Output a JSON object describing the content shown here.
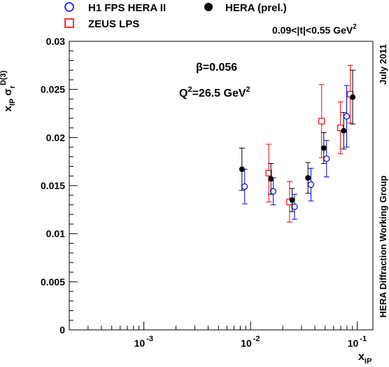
{
  "chart_data": {
    "type": "scatter",
    "xscale": "log",
    "xlim": [
      0.0002,
      0.14
    ],
    "ylim": [
      0,
      0.03
    ],
    "grid": false,
    "legend_position": "top",
    "xlabel": {
      "main": "x",
      "sub": "IP"
    },
    "ylabel": {
      "x": "x",
      "x_sub": "IP",
      "sigma": "σ",
      "sigma_sub": "r",
      "sup": "D(3)"
    },
    "x_ticks": [
      {
        "value": 0.001,
        "base": "10",
        "exp": "-3"
      },
      {
        "value": 0.01,
        "base": "10",
        "exp": "-2"
      },
      {
        "value": 0.1,
        "base": "10",
        "exp": "-1"
      }
    ],
    "y_ticks": [
      {
        "value": 0,
        "label": "0"
      },
      {
        "value": 0.005,
        "label": "0.005"
      },
      {
        "value": 0.01,
        "label": "0.01"
      },
      {
        "value": 0.015,
        "label": "0.015"
      },
      {
        "value": 0.02,
        "label": "0.02"
      },
      {
        "value": 0.025,
        "label": "0.025"
      },
      {
        "value": 0.03,
        "label": "0.03"
      }
    ],
    "annotations": {
      "beta": "β=0.056",
      "q2_main": "Q",
      "q2_sup": "2",
      "q2_value": "=26.5 GeV",
      "q2_unit_sup": "2",
      "t_range": "0.09<|t|<0.55 GeV",
      "t_range_sup": "2",
      "date": "July 2011",
      "group": "HERA Diffraction Working Group"
    },
    "series": [
      {
        "name": "H1 FPS HERA II",
        "marker": "open-circle",
        "color": "#0000ff",
        "points": [
          {
            "x": 0.0088,
            "y": 0.0149,
            "err": 0.0018
          },
          {
            "x": 0.0163,
            "y": 0.0144,
            "err": 0.0014
          },
          {
            "x": 0.0258,
            "y": 0.0128,
            "err": 0.0013
          },
          {
            "x": 0.0368,
            "y": 0.0151,
            "err": 0.0017
          },
          {
            "x": 0.0515,
            "y": 0.0178,
            "err": 0.0019
          },
          {
            "x": 0.0795,
            "y": 0.0222,
            "err": 0.0032
          }
        ]
      },
      {
        "name": "ZEUS LPS",
        "marker": "open-square",
        "color": "#ff0000",
        "points": [
          {
            "x": 0.0148,
            "y": 0.0163,
            "err": 0.003
          },
          {
            "x": 0.0232,
            "y": 0.0133,
            "err": 0.0021
          },
          {
            "x": 0.0463,
            "y": 0.0217,
            "err": 0.0038
          },
          {
            "x": 0.0695,
            "y": 0.021,
            "err": 0.0027
          },
          {
            "x": 0.086,
            "y": 0.0245,
            "err": 0.003
          }
        ]
      },
      {
        "name": "HERA (prel.)",
        "marker": "filled-circle",
        "color": "#000000",
        "points": [
          {
            "x": 0.0083,
            "y": 0.0167,
            "err": 0.0022
          },
          {
            "x": 0.0155,
            "y": 0.0157,
            "err": 0.0016
          },
          {
            "x": 0.0245,
            "y": 0.0135,
            "err": 0.0012
          },
          {
            "x": 0.0345,
            "y": 0.0158,
            "err": 0.0016
          },
          {
            "x": 0.0485,
            "y": 0.0189,
            "err": 0.0016
          },
          {
            "x": 0.0745,
            "y": 0.0207,
            "err": 0.0019
          },
          {
            "x": 0.0905,
            "y": 0.0242,
            "err": 0.0028
          }
        ]
      }
    ]
  }
}
